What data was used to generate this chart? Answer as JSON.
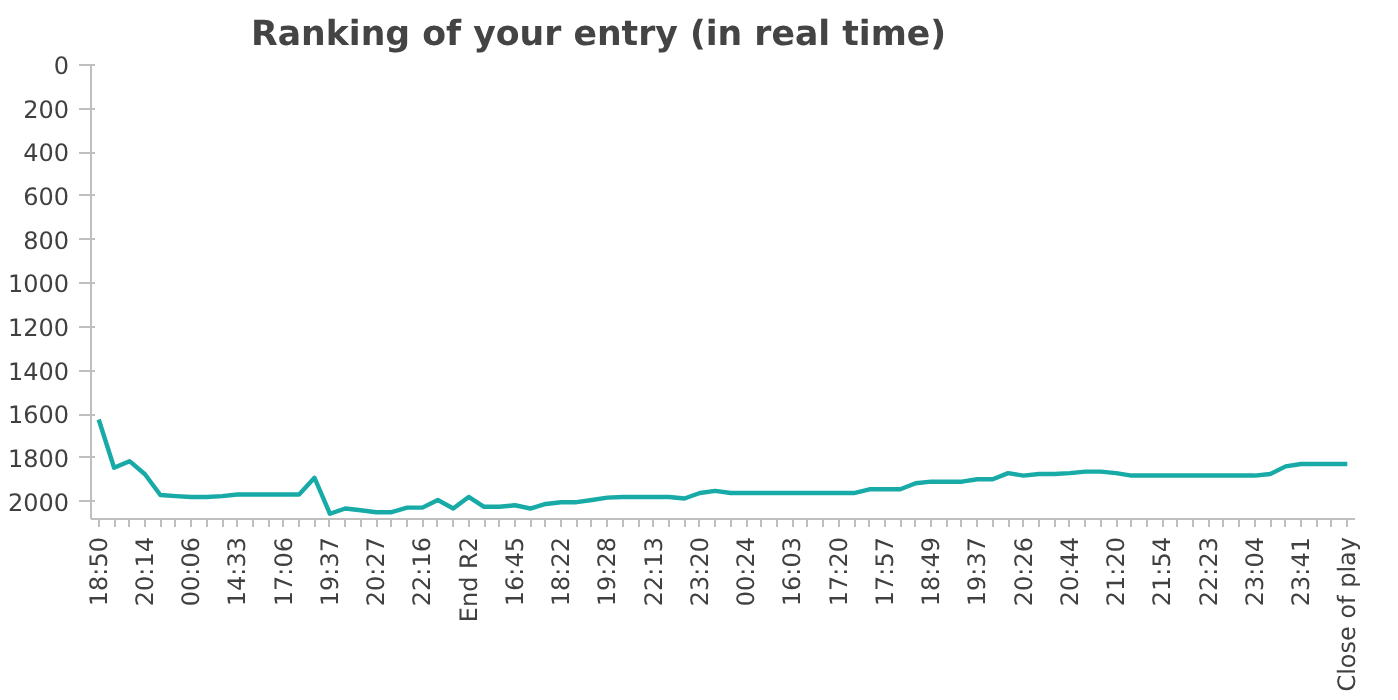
{
  "chart_data": {
    "type": "line",
    "title": "Ranking of your entry (in real time)",
    "categories": [
      "18:50",
      null,
      null,
      "20:14",
      null,
      null,
      "00:06",
      null,
      null,
      "14:33",
      null,
      null,
      "17:06",
      null,
      null,
      "19:37",
      null,
      null,
      "20:27",
      null,
      null,
      "22:16",
      null,
      null,
      "End R2",
      null,
      null,
      "16:45",
      null,
      null,
      "18:22",
      null,
      null,
      "19:28",
      null,
      null,
      "22:13",
      null,
      null,
      "23:20",
      null,
      null,
      "00:24",
      null,
      null,
      "16:03",
      null,
      null,
      "17:20",
      null,
      null,
      "17:57",
      null,
      null,
      "18:49",
      null,
      null,
      "19:37",
      null,
      null,
      "20:26",
      null,
      null,
      "20:44",
      null,
      null,
      "21:20",
      null,
      null,
      "21:54",
      null,
      null,
      "22:23",
      null,
      null,
      "23:04",
      null,
      null,
      "23:41",
      null,
      null,
      "Close of play"
    ],
    "series": [
      {
        "color": "#17aaa6",
        "values": [
          1624,
          1845,
          1815,
          1875,
          1970,
          1975,
          1979,
          1979,
          1975,
          1968,
          1968,
          1968,
          1968,
          1968,
          1891,
          2056,
          2032,
          2040,
          2049,
          2049,
          2028,
          2028,
          1993,
          2032,
          1979,
          2024,
          2024,
          2017,
          2032,
          2011,
          2003,
          2003,
          1993,
          1982,
          1979,
          1979,
          1979,
          1979,
          1986,
          1961,
          1951,
          1961,
          1961,
          1961,
          1961,
          1961,
          1961,
          1961,
          1961,
          1961,
          1944,
          1944,
          1944,
          1916,
          1909,
          1909,
          1909,
          1898,
          1898,
          1870,
          1881,
          1874,
          1874,
          1870,
          1863,
          1863,
          1870,
          1881,
          1881,
          1881,
          1881,
          1881,
          1881,
          1881,
          1881,
          1881,
          1874,
          1839,
          1828,
          1828,
          1828,
          1828
        ]
      }
    ],
    "ylim": [
      2080,
      0
    ],
    "yticks": [
      0,
      200,
      400,
      600,
      800,
      1000,
      1200,
      1400,
      1600,
      1800,
      2000
    ],
    "grid": false,
    "marker": "none",
    "line_style": "solid"
  }
}
